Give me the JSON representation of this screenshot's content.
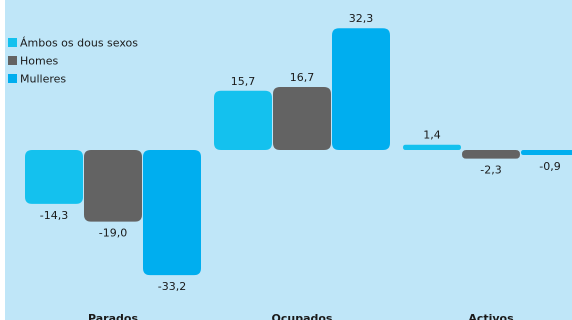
{
  "chart_data": {
    "type": "bar",
    "title": "",
    "xlabel": "",
    "ylabel": "",
    "categories": [
      "Parados",
      "Ocupados",
      "Activos"
    ],
    "series": [
      {
        "name": "Ámbos os dous sexos",
        "values": [
          -14.3,
          15.7,
          1.4
        ],
        "labels": [
          "-14,3",
          "15,7",
          "1,4"
        ]
      },
      {
        "name": "Homes",
        "values": [
          -19.0,
          16.7,
          -2.3
        ],
        "labels": [
          "-19,0",
          "16,7",
          "-2,3"
        ]
      },
      {
        "name": "Mulleres",
        "values": [
          -33.2,
          32.3,
          -0.9
        ],
        "labels": [
          "-33,2",
          "32,3",
          "-0,9"
        ]
      }
    ],
    "legend_position": "top-left",
    "grid": false,
    "colors": {
      "background": "#bfe6f8",
      "series": [
        "#14c1ee",
        "#636363",
        "#00aeef"
      ],
      "text": "#1a1a1a"
    }
  }
}
